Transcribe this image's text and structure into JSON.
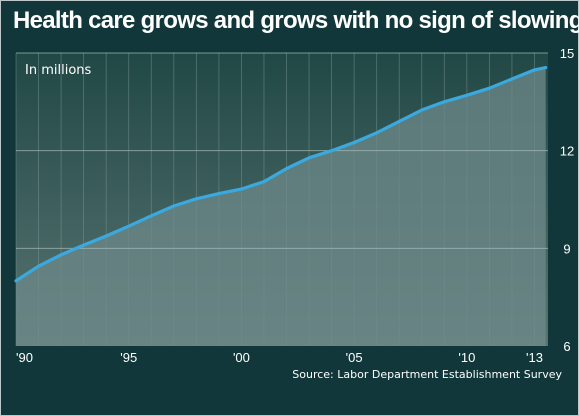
{
  "title": "Health care grows and grows with no sign of slowing",
  "source": "Source: Labor Department Establishment Survey",
  "chart_data": {
    "type": "line",
    "title": "Health care grows and grows with no sign of slowing",
    "unit_note": "In millions",
    "xlim": [
      1990,
      2013.6
    ],
    "ylim": [
      6,
      15
    ],
    "x_ticks": [
      {
        "value": 1990,
        "label": "'90"
      },
      {
        "value": 1995,
        "label": "'95"
      },
      {
        "value": 2000,
        "label": "'00"
      },
      {
        "value": 2005,
        "label": "'05"
      },
      {
        "value": 2010,
        "label": "'10"
      },
      {
        "value": 2013,
        "label": "'13"
      }
    ],
    "y_ticks": [
      {
        "value": 6,
        "label": "6"
      },
      {
        "value": 9,
        "label": "9"
      },
      {
        "value": 12,
        "label": "12"
      },
      {
        "value": 15,
        "label": "15"
      }
    ],
    "grid": true,
    "series": [
      {
        "color": "#3aa9e0",
        "points": [
          [
            1990,
            8.0
          ],
          [
            1991,
            8.45
          ],
          [
            1992,
            8.8
          ],
          [
            1993,
            9.1
          ],
          [
            1994,
            9.38
          ],
          [
            1995,
            9.68
          ],
          [
            1996,
            10.0
          ],
          [
            1997,
            10.3
          ],
          [
            1998,
            10.52
          ],
          [
            1999,
            10.68
          ],
          [
            2000,
            10.82
          ],
          [
            2001,
            11.05
          ],
          [
            2002,
            11.45
          ],
          [
            2003,
            11.78
          ],
          [
            2004,
            12.0
          ],
          [
            2005,
            12.25
          ],
          [
            2006,
            12.55
          ],
          [
            2007,
            12.9
          ],
          [
            2008,
            13.25
          ],
          [
            2009,
            13.5
          ],
          [
            2010,
            13.7
          ],
          [
            2011,
            13.92
          ],
          [
            2012,
            14.2
          ],
          [
            2013,
            14.48
          ],
          [
            2013.5,
            14.55
          ]
        ]
      }
    ]
  },
  "colors": {
    "background": "#11373a",
    "plot_top": "#214845",
    "plot_bottom": "#587472",
    "area_fill": "#6e8a89",
    "line": "#3aa9e0",
    "grid": "#7e9897",
    "text": "#ffffff"
  }
}
